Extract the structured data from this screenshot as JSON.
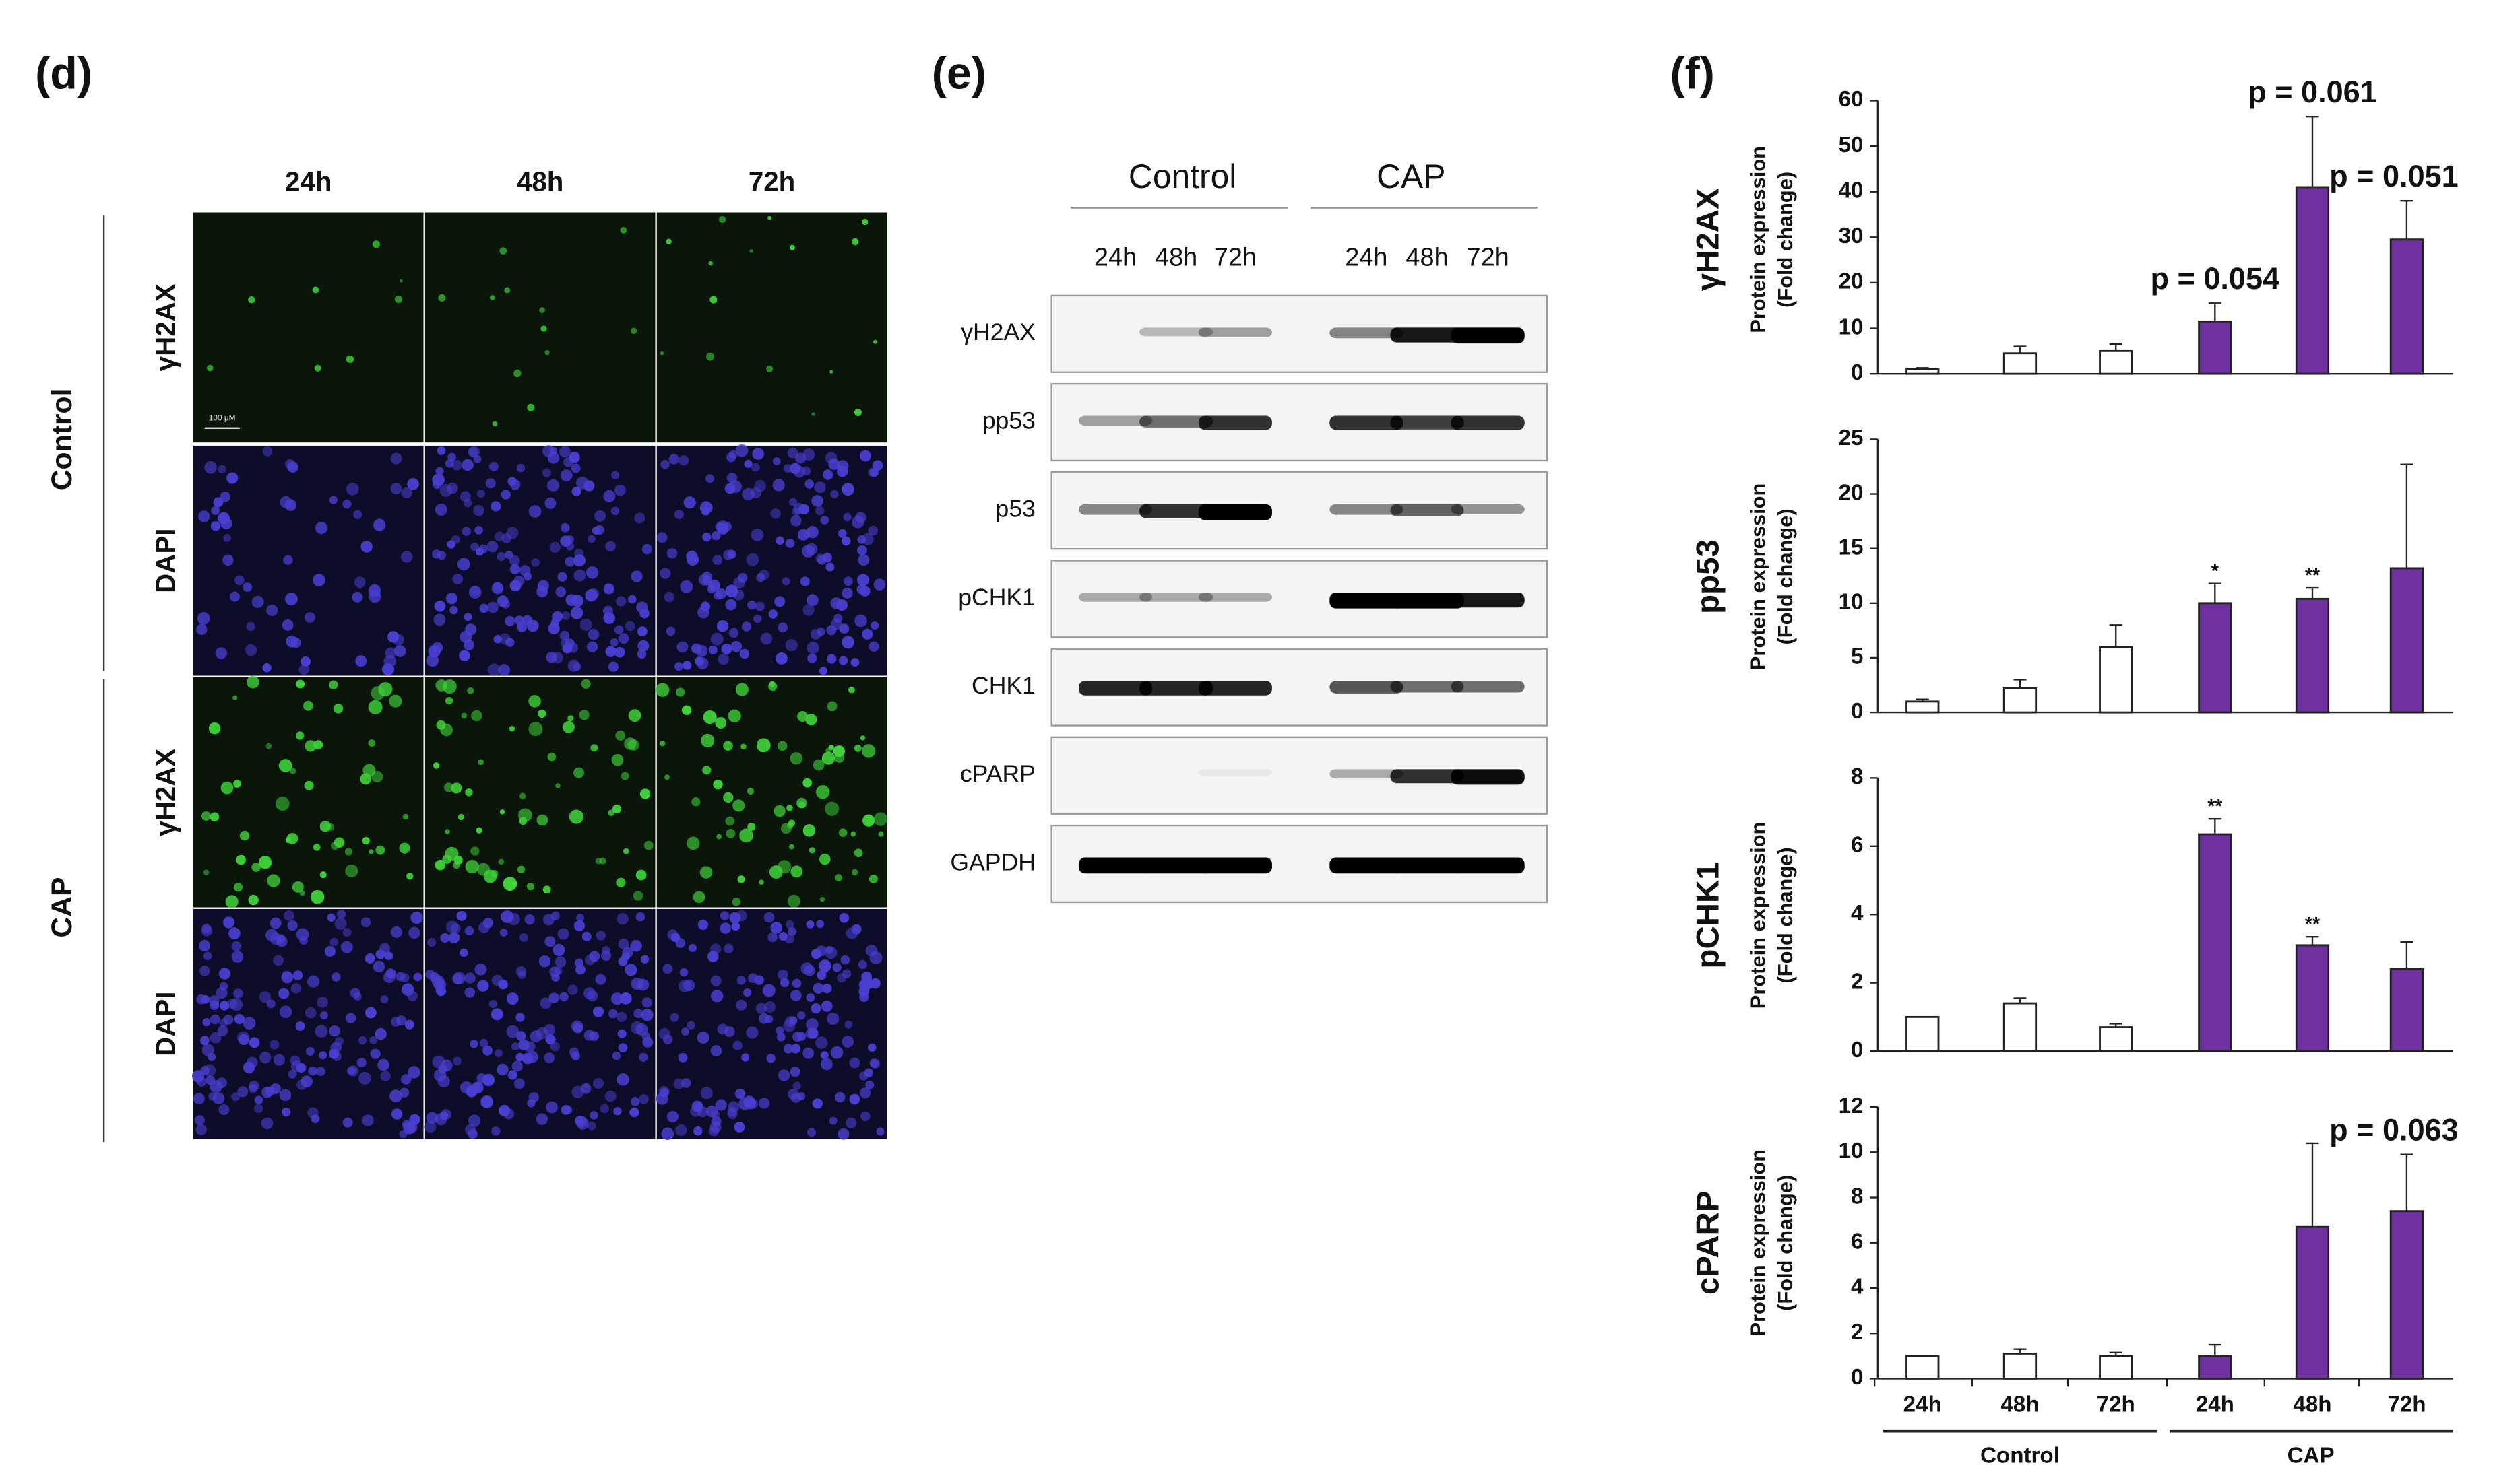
{
  "panel_d": {
    "letter": "(d)",
    "columns": [
      "24h",
      "48h",
      "72h"
    ],
    "groups": [
      "Control",
      "CAP"
    ],
    "rows": [
      "γH2AX",
      "DAPI",
      "γH2AX",
      "DAPI"
    ],
    "scale_bar": "100 μM"
  },
  "panel_e": {
    "letter": "(e)",
    "groups": [
      "Control",
      "CAP"
    ],
    "lanes": [
      "24h",
      "48h",
      "72h",
      "24h",
      "48h",
      "72h"
    ],
    "proteins": [
      "γH2AX",
      "pp53",
      "p53",
      "pCHK1",
      "CHK1",
      "cPARP",
      "GAPDH"
    ]
  },
  "panel_f": {
    "letter": "(f)",
    "groups": [
      "Control",
      "CAP"
    ]
  },
  "chart_data": [
    {
      "type": "bar",
      "title": "γH2AX",
      "ylabel": [
        "Protein expression",
        "(Fold change)"
      ],
      "values": [
        1,
        4.5,
        5,
        11.5,
        41,
        29.5
      ],
      "errors": [
        0.3,
        1.5,
        1.5,
        4,
        15.5,
        8.5
      ],
      "colors": [
        "#ffffff",
        "#ffffff",
        "#ffffff",
        "#7030a0",
        "#7030a0",
        "#7030a0"
      ],
      "bar_labels": [
        null,
        null,
        null,
        "p = 0.054",
        "p = 0.061",
        "p = 0.051"
      ],
      "ylim": [
        0,
        60
      ],
      "yticks": [
        0,
        10,
        20,
        30,
        40,
        50,
        60
      ]
    },
    {
      "type": "bar",
      "title": "pp53",
      "ylabel": [
        "Protein expression",
        "(Fold change)"
      ],
      "values": [
        1,
        2.2,
        6,
        10,
        10.4,
        13.2
      ],
      "errors": [
        0.2,
        0.8,
        2,
        1.8,
        1,
        9.5
      ],
      "colors": [
        "#ffffff",
        "#ffffff",
        "#ffffff",
        "#7030a0",
        "#7030a0",
        "#7030a0"
      ],
      "bar_labels": [
        null,
        null,
        null,
        "*",
        "**",
        null
      ],
      "ylim": [
        0,
        25
      ],
      "yticks": [
        0,
        5,
        10,
        15,
        20,
        25
      ]
    },
    {
      "type": "bar",
      "title": "pCHK1",
      "ylabel": [
        "Protein expression",
        "(Fold change)"
      ],
      "values": [
        1,
        1.4,
        0.7,
        6.35,
        3.1,
        2.4
      ],
      "errors": [
        0,
        0.15,
        0.1,
        0.45,
        0.25,
        0.8
      ],
      "colors": [
        "#ffffff",
        "#ffffff",
        "#ffffff",
        "#7030a0",
        "#7030a0",
        "#7030a0"
      ],
      "bar_labels": [
        null,
        null,
        null,
        "**",
        "**",
        null
      ],
      "ylim": [
        0,
        8
      ],
      "yticks": [
        0,
        2,
        4,
        6,
        8
      ]
    },
    {
      "type": "bar",
      "title": "cPARP",
      "ylabel": [
        "Protein expression",
        "(Fold change)"
      ],
      "categories": [
        "24h",
        "48h",
        "72h",
        "24h",
        "48h",
        "72h"
      ],
      "values": [
        1,
        1.1,
        1,
        1,
        6.7,
        7.4
      ],
      "errors": [
        0,
        0.2,
        0.15,
        0.5,
        3.7,
        2.5
      ],
      "colors": [
        "#ffffff",
        "#ffffff",
        "#ffffff",
        "#7030a0",
        "#7030a0",
        "#7030a0"
      ],
      "bar_labels": [
        null,
        null,
        null,
        null,
        null,
        "p = 0.063"
      ],
      "ylim": [
        0,
        12
      ],
      "yticks": [
        0,
        2,
        4,
        6,
        8,
        10,
        12
      ]
    }
  ]
}
